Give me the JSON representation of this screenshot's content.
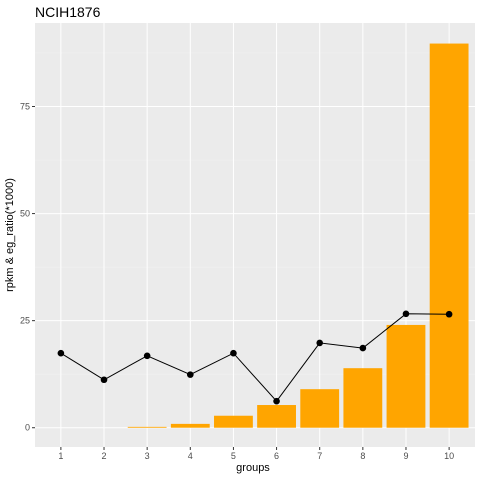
{
  "chart_data": {
    "type": "bar",
    "title": "NCIH1876",
    "xlabel": "groups",
    "ylabel": "rpkm & eg_ratio(*1000)",
    "categories": [
      "1",
      "2",
      "3",
      "4",
      "5",
      "6",
      "7",
      "8",
      "9",
      "10"
    ],
    "ylim": [
      -4.5,
      94.5
    ],
    "yticks": [
      0,
      25,
      50,
      75
    ],
    "ytick_labels": [
      "0",
      "25",
      "50",
      "75"
    ],
    "grid": true,
    "legend": "none",
    "series": [
      {
        "type": "bar",
        "values": [
          0,
          0,
          0.2,
          0.9,
          2.8,
          5.3,
          9.0,
          13.9,
          24.0,
          89.7
        ],
        "color": "#FFA500"
      },
      {
        "type": "line",
        "values": [
          17.4,
          11.2,
          16.8,
          12.4,
          17.4,
          6.2,
          19.8,
          18.6,
          26.6,
          26.5
        ],
        "color": "#000000"
      }
    ]
  },
  "colors": {
    "panel_background": "#EBEBEB",
    "grid_major": "#FFFFFF",
    "grid_minor": "#F2F2F2",
    "bar_fill": "#FFA500",
    "line": "#000000",
    "tick_text": "#4D4D4D"
  }
}
